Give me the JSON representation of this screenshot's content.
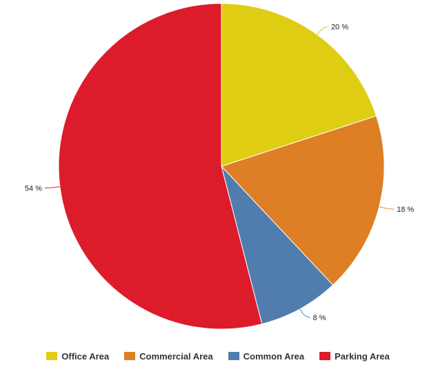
{
  "chart_data": {
    "type": "pie",
    "title": "",
    "unit": "%",
    "legend_position": "bottom",
    "slices": [
      {
        "name": "Office Area",
        "value": 20,
        "label": "20 %",
        "color": "#dfcd14"
      },
      {
        "name": "Commercial Area",
        "value": 18,
        "label": "18 %",
        "color": "#de7f25"
      },
      {
        "name": "Common Area",
        "value": 8,
        "label": "8 %",
        "color": "#517dae"
      },
      {
        "name": "Parking Area",
        "value": 54,
        "label": "54 %",
        "color": "#dc1c2a"
      }
    ]
  }
}
